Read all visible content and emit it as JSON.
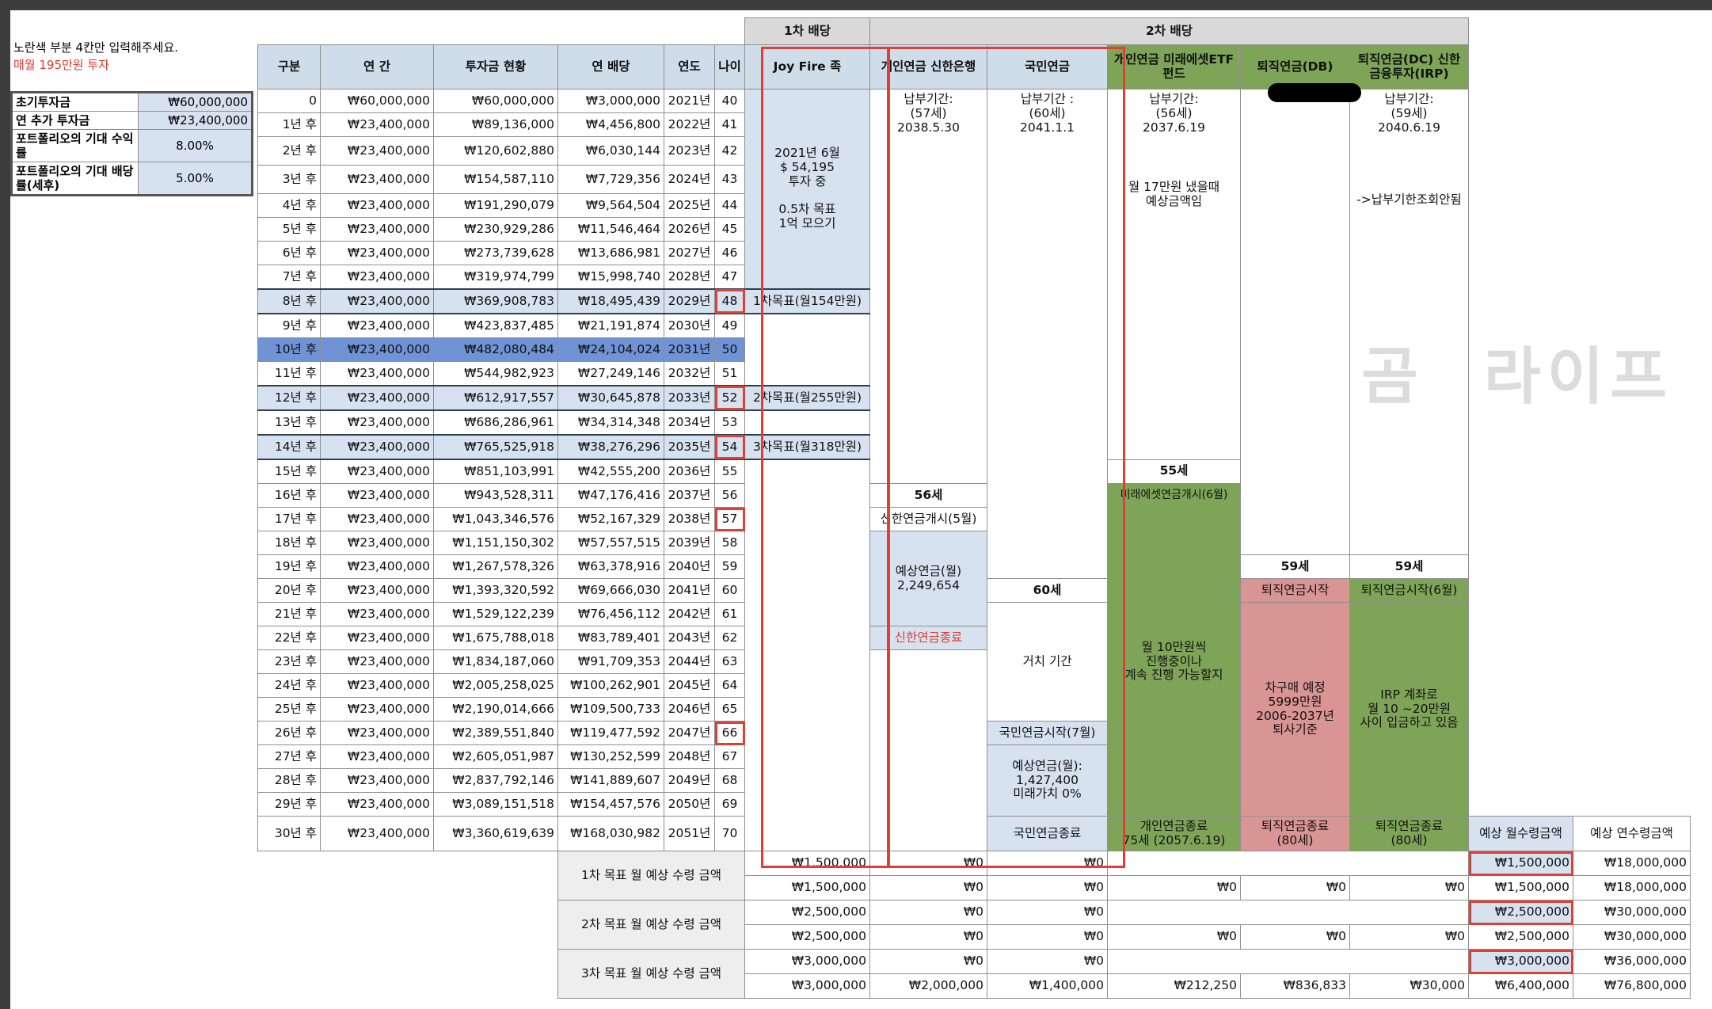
{
  "instructions": {
    "line1": "노란색 부분 4칸만 입력해주세요.",
    "line2": "매월 195만원 투자"
  },
  "inputs": [
    {
      "label": "초기투자금",
      "value": "₩60,000,000"
    },
    {
      "label": "연 추가 투자금",
      "value": "₩23,400,000"
    },
    {
      "label": "포트폴리오의 기대 수익률",
      "value": "8.00%"
    },
    {
      "label": "포트폴리오의 기대 배당률(세후)",
      "value": "5.00%"
    }
  ],
  "headers": {
    "dividend1": "1차 배당",
    "dividend2": "2차 배당",
    "cols": [
      "구분",
      "연 간",
      "투자금 현황",
      "연 배당",
      "연도",
      "나이",
      "Joy Fire 족",
      "개인연금 신한은행",
      "국민연금",
      "개인연금 미래에셋ETF펀드",
      "퇴직연금(DB)",
      "퇴직연금(DC) 신한금융투자(IRP)"
    ]
  },
  "rows": [
    [
      "0",
      "₩60,000,000",
      "₩60,000,000",
      "₩3,000,000",
      "2021년",
      "40"
    ],
    [
      "1년 후",
      "₩23,400,000",
      "₩89,136,000",
      "₩4,456,800",
      "2022년",
      "41"
    ],
    [
      "2년 후",
      "₩23,400,000",
      "₩120,602,880",
      "₩6,030,144",
      "2023년",
      "42"
    ],
    [
      "3년 후",
      "₩23,400,000",
      "₩154,587,110",
      "₩7,729,356",
      "2024년",
      "43"
    ],
    [
      "4년 후",
      "₩23,400,000",
      "₩191,290,079",
      "₩9,564,504",
      "2025년",
      "44"
    ],
    [
      "5년 후",
      "₩23,400,000",
      "₩230,929,286",
      "₩11,546,464",
      "2026년",
      "45"
    ],
    [
      "6년 후",
      "₩23,400,000",
      "₩273,739,628",
      "₩13,686,981",
      "2027년",
      "46"
    ],
    [
      "7년 후",
      "₩23,400,000",
      "₩319,974,799",
      "₩15,998,740",
      "2028년",
      "47"
    ],
    [
      "8년 후",
      "₩23,400,000",
      "₩369,908,783",
      "₩18,495,439",
      "2029년",
      "48"
    ],
    [
      "9년 후",
      "₩23,400,000",
      "₩423,837,485",
      "₩21,191,874",
      "2030년",
      "49"
    ],
    [
      "10년 후",
      "₩23,400,000",
      "₩482,080,484",
      "₩24,104,024",
      "2031년",
      "50"
    ],
    [
      "11년 후",
      "₩23,400,000",
      "₩544,982,923",
      "₩27,249,146",
      "2032년",
      "51"
    ],
    [
      "12년 후",
      "₩23,400,000",
      "₩612,917,557",
      "₩30,645,878",
      "2033년",
      "52"
    ],
    [
      "13년 후",
      "₩23,400,000",
      "₩686,286,961",
      "₩34,314,348",
      "2034년",
      "53"
    ],
    [
      "14년 후",
      "₩23,400,000",
      "₩765,525,918",
      "₩38,276,296",
      "2035년",
      "54"
    ],
    [
      "15년 후",
      "₩23,400,000",
      "₩851,103,991",
      "₩42,555,200",
      "2036년",
      "55"
    ],
    [
      "16년 후",
      "₩23,400,000",
      "₩943,528,311",
      "₩47,176,416",
      "2037년",
      "56"
    ],
    [
      "17년 후",
      "₩23,400,000",
      "₩1,043,346,576",
      "₩52,167,329",
      "2038년",
      "57"
    ],
    [
      "18년 후",
      "₩23,400,000",
      "₩1,151,150,302",
      "₩57,557,515",
      "2039년",
      "58"
    ],
    [
      "19년 후",
      "₩23,400,000",
      "₩1,267,578,326",
      "₩63,378,916",
      "2040년",
      "59"
    ],
    [
      "20년 후",
      "₩23,400,000",
      "₩1,393,320,592",
      "₩69,666,030",
      "2041년",
      "60"
    ],
    [
      "21년 후",
      "₩23,400,000",
      "₩1,529,122,239",
      "₩76,456,112",
      "2042년",
      "61"
    ],
    [
      "22년 후",
      "₩23,400,000",
      "₩1,675,788,018",
      "₩83,789,401",
      "2043년",
      "62"
    ],
    [
      "23년 후",
      "₩23,400,000",
      "₩1,834,187,060",
      "₩91,709,353",
      "2044년",
      "63"
    ],
    [
      "24년 후",
      "₩23,400,000",
      "₩2,005,258,025",
      "₩100,262,901",
      "2045년",
      "64"
    ],
    [
      "25년 후",
      "₩23,400,000",
      "₩2,190,014,666",
      "₩109,500,733",
      "2046년",
      "65"
    ],
    [
      "26년 후",
      "₩23,400,000",
      "₩2,389,551,840",
      "₩119,477,592",
      "2047년",
      "66"
    ],
    [
      "27년 후",
      "₩23,400,000",
      "₩2,605,051,987",
      "₩130,252,599",
      "2048년",
      "67"
    ],
    [
      "28년 후",
      "₩23,400,000",
      "₩2,837,792,146",
      "₩141,889,607",
      "2049년",
      "68"
    ],
    [
      "29년 후",
      "₩23,400,000",
      "₩3,089,151,518",
      "₩154,457,576",
      "2050년",
      "69"
    ],
    [
      "30년 후",
      "₩23,400,000",
      "₩3,360,619,639",
      "₩168,030,982",
      "2051년",
      "70"
    ]
  ],
  "joy": {
    "note": "2021년 6월\n$ 54,195\n투자 중\n\n0.5차 목표\n1억 모으기",
    "goal1": "1차목표(월154만원)",
    "goal2": "2차목표(월255만원)",
    "goal3": "3차목표(월318만원)"
  },
  "shinhan": {
    "note": "납부기간:\n(57세)\n2038.5.30",
    "age": "56세",
    "start": "신한연금개시(5월)",
    "expected": "예상연금(월)\n2,249,654",
    "end": "신한연금종료"
  },
  "national": {
    "note": "납부기간 :\n(60세)\n2041.1.1",
    "age": "60세",
    "deferred": "거치 기간",
    "start": "국민연금시작(7월)",
    "expected": "예상연금(월):\n1,427,400\n미래가치 0%",
    "end": "국민연금종료"
  },
  "mirae": {
    "note": "납부기간:\n(56세)\n2037.6.19",
    "note2": "월 17만원 냈을때\n예상금액임",
    "age": "55세",
    "start": "미래에셋연금개시(6월)",
    "mid": "월 10만원씩\n진행중이나\n계속 진행 가능할지",
    "end": "개인연금종료\n75세 (2057.6.19)"
  },
  "db": {
    "age": "59세",
    "start": "퇴직연금시작",
    "mid": "차구매 예정\n5999만원\n2006-2037년\n퇴사기준",
    "end": "퇴직연금종료\n(80세)"
  },
  "dc": {
    "note": "납부기간:\n(59세)\n2040.6.19",
    "note2": "->납부기한조회안됨",
    "age": "59세",
    "start": "퇴직연금시작(6월)",
    "mid": "IRP 계좌로\n월 10 ~20만원\n사이 입금하고 있음",
    "end": "퇴직연금종료\n(80세)"
  },
  "summary_headers": {
    "monthly": "예상 월수령금액",
    "annual": "예상 연수령금액"
  },
  "goals": [
    {
      "label": "1차 목표 월 예상 수령 금액",
      "rows": [
        [
          "₩1,500,000",
          "₩0",
          "₩0",
          "",
          "",
          "",
          "₩1,500,000",
          "₩18,000,000"
        ],
        [
          "₩1,500,000",
          "₩0",
          "₩0",
          "₩0",
          "₩0",
          "₩0",
          "₩1,500,000",
          "₩18,000,000"
        ]
      ]
    },
    {
      "label": "2차 목표 월 예상 수령 금액",
      "rows": [
        [
          "₩2,500,000",
          "₩0",
          "₩0",
          "",
          "",
          "",
          "₩2,500,000",
          "₩30,000,000"
        ],
        [
          "₩2,500,000",
          "₩0",
          "₩0",
          "₩0",
          "₩0",
          "₩0",
          "₩2,500,000",
          "₩30,000,000"
        ]
      ]
    },
    {
      "label": "3차 목표 월 예상 수령 금액",
      "rows": [
        [
          "₩3,000,000",
          "₩0",
          "₩0",
          "",
          "",
          "",
          "₩3,000,000",
          "₩36,000,000"
        ],
        [
          "₩3,000,000",
          "₩2,000,000",
          "₩1,400,000",
          "₩212,250",
          "₩836,833",
          "₩30,000",
          "₩6,400,000",
          "₩76,800,000"
        ]
      ]
    }
  ],
  "watermark": "곰 라이프",
  "colors": {
    "input_blue": "#d6e2f0",
    "green": "#7ea457",
    "pink": "#d99594",
    "highlight_row": "#6f93d4",
    "red": "#e04034"
  }
}
